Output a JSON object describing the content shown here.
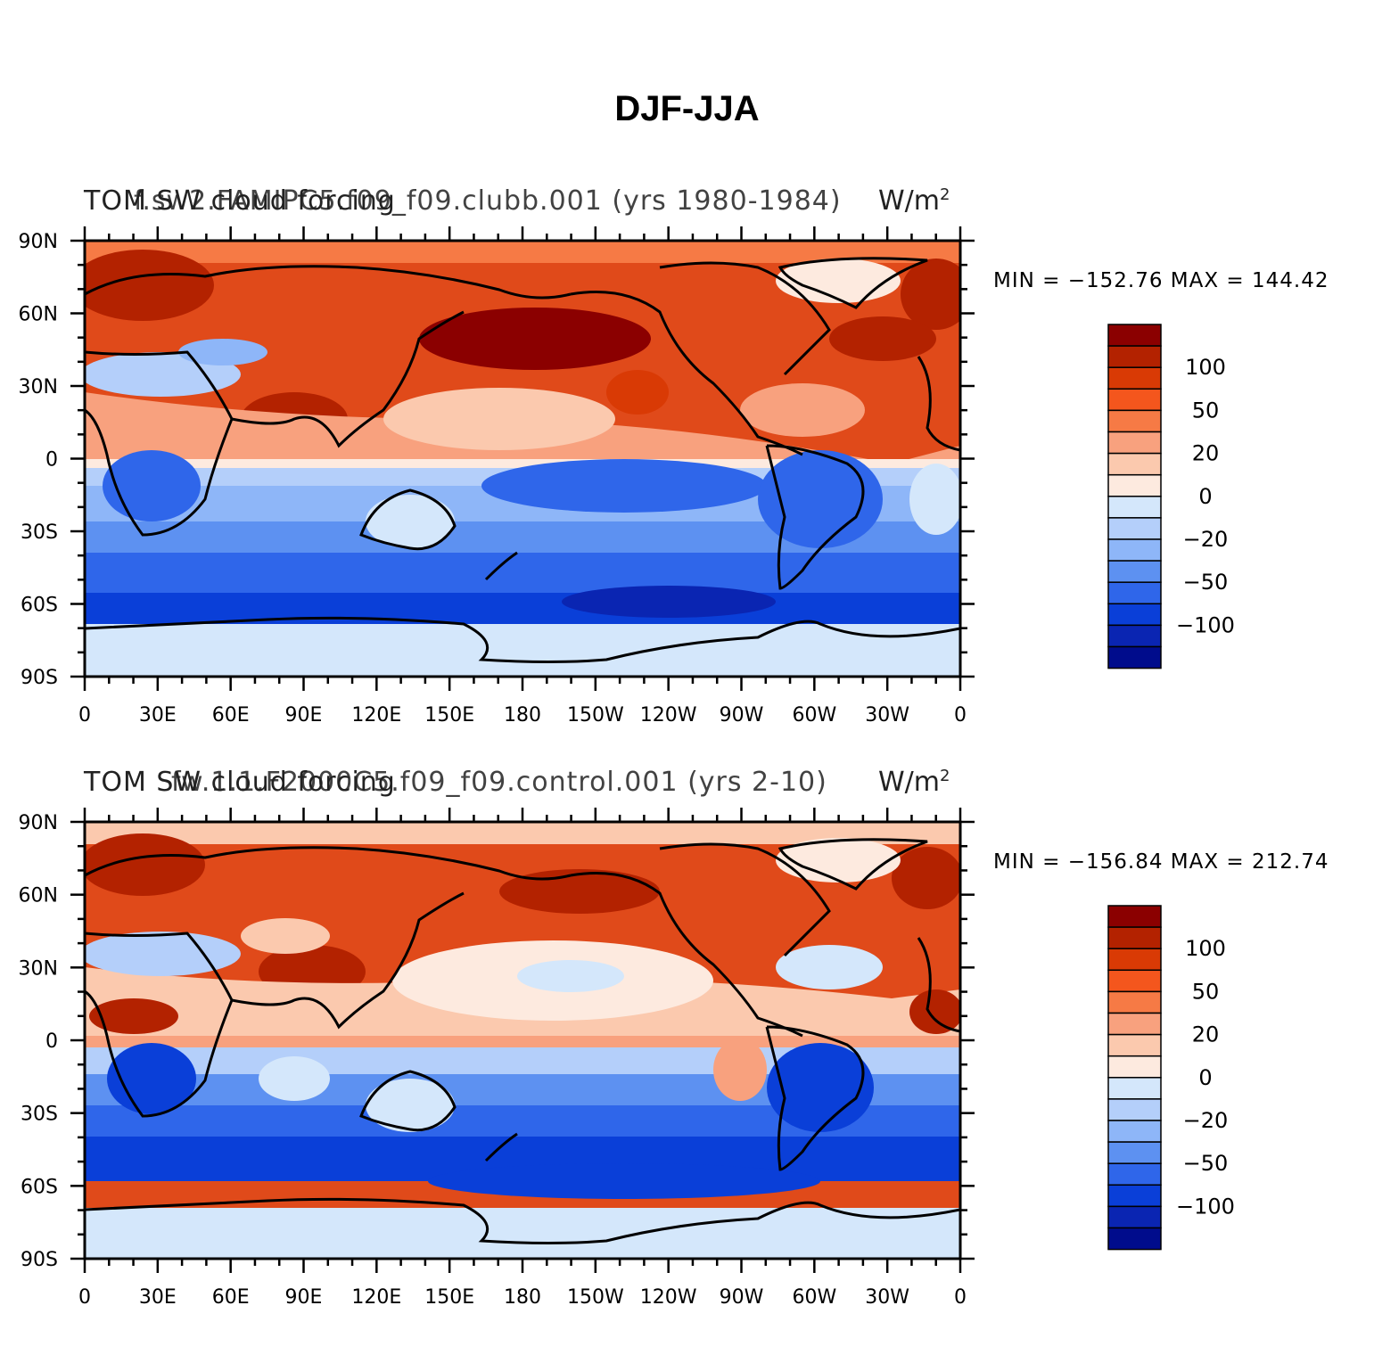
{
  "figure": {
    "title": "DJF-JJA",
    "variable": "TOM SW cloud forcing",
    "units": "W/m",
    "units_exponent": "2"
  },
  "panels": [
    {
      "case_label": "f.sw2.FAMIPC5.f09_f09.clubb.001 (yrs 1980-1984)",
      "min_max": "MIN = −152.76  MAX = 144.42"
    },
    {
      "case_label": "fw.1.1.F2000C5.f09_f09.control.001 (yrs 2-10)",
      "min_max": "MIN = −156.84  MAX = 212.74"
    }
  ],
  "axes": {
    "lat_ticks": [
      "90N",
      "60N",
      "30N",
      "0",
      "30S",
      "60S",
      "90S"
    ],
    "lon_ticks": [
      "0",
      "30E",
      "60E",
      "90E",
      "120E",
      "150E",
      "180",
      "150W",
      "120W",
      "90W",
      "60W",
      "30W",
      "0"
    ]
  },
  "colorbar": {
    "colors": [
      "#8b0000",
      "#b32200",
      "#d93a05",
      "#f4561d",
      "#f67a45",
      "#f8a17e",
      "#fbc9ae",
      "#fdeadf",
      "#d4e7fb",
      "#b4cffa",
      "#8eb6f8",
      "#5d91f1",
      "#2f66ea",
      "#0a3fd8",
      "#0a25b2",
      "#000c8c"
    ],
    "labels": [
      "100",
      "50",
      "20",
      "0",
      "−20",
      "−50",
      "−100"
    ]
  }
}
